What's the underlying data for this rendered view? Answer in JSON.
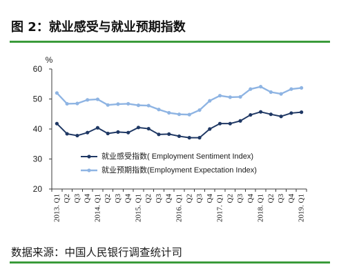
{
  "figure": {
    "caption": "图 2：就业感受与就业预期指数",
    "source": "数据来源：中国人民银行调查统计司",
    "rule_color": "#3a9b3a"
  },
  "chart_data": {
    "type": "line",
    "ylabel": "%",
    "ylim": [
      20,
      60
    ],
    "yticks": [
      20,
      30,
      40,
      50,
      60
    ],
    "grid": false,
    "legend": "inside-bottom-left",
    "categories": [
      "2013. Q1",
      "Q2",
      "Q3",
      "Q4",
      "2014. Q1",
      "Q2",
      "Q3",
      "Q4",
      "2015. Q1",
      "Q2",
      "Q3",
      "Q4",
      "2016. Q1",
      "Q2",
      "Q3",
      "Q4",
      "2017. Q1",
      "Q2",
      "Q3",
      "Q4",
      "2018. Q1",
      "Q2",
      "Q3",
      "Q4",
      "2019. Q1"
    ],
    "series": [
      {
        "name": "就业感受指数( Employment Sentiment Index)",
        "color": "#1f3864",
        "values": [
          41.8,
          38.4,
          37.8,
          38.8,
          40.4,
          38.5,
          39.0,
          38.8,
          40.5,
          40.1,
          38.2,
          38.3,
          37.6,
          37.1,
          37.1,
          40.0,
          41.8,
          41.8,
          42.7,
          44.7,
          45.7,
          44.9,
          44.2,
          45.3,
          45.6
        ]
      },
      {
        "name": "就业预期指数(Employment Expectation Index)",
        "color": "#8eb4e3",
        "values": [
          52.0,
          48.4,
          48.5,
          49.7,
          49.9,
          48.0,
          48.3,
          48.4,
          47.9,
          47.8,
          46.5,
          45.4,
          44.9,
          44.8,
          46.3,
          49.4,
          51.1,
          50.6,
          50.7,
          53.3,
          54.1,
          52.3,
          51.7,
          53.3,
          53.7
        ]
      }
    ]
  }
}
